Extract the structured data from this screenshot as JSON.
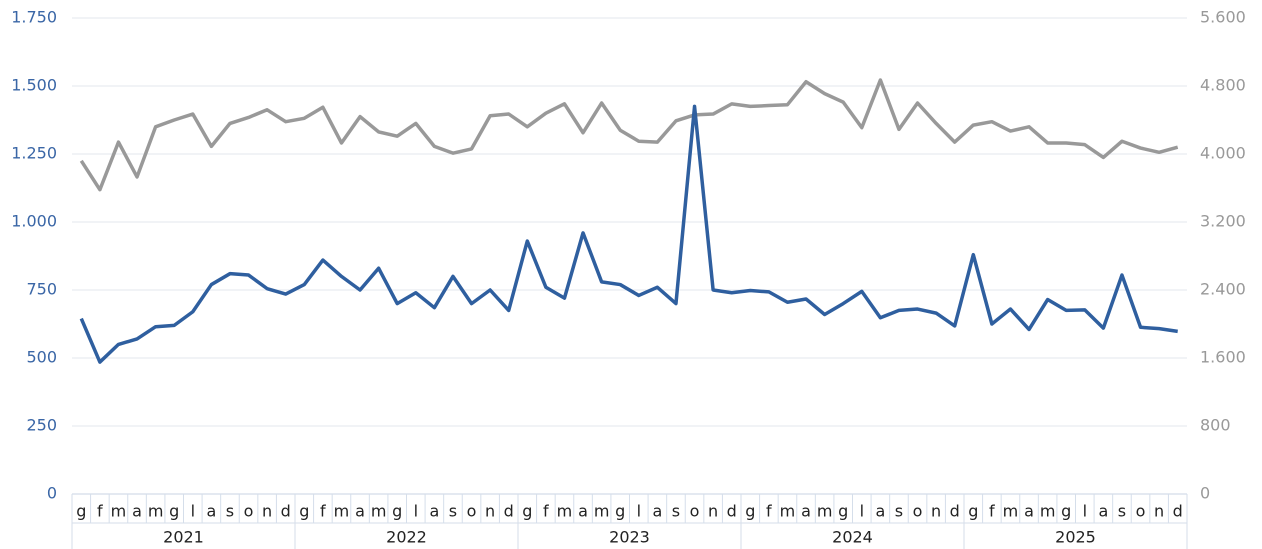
{
  "chart_data": {
    "type": "line",
    "categories": [
      "g",
      "f",
      "m",
      "a",
      "m",
      "g",
      "l",
      "a",
      "s",
      "o",
      "n",
      "d",
      "g",
      "f",
      "m",
      "a",
      "m",
      "g",
      "l",
      "a",
      "s",
      "o",
      "n",
      "d",
      "g",
      "f",
      "m",
      "a",
      "m",
      "g",
      "l",
      "a",
      "s",
      "o",
      "n",
      "d",
      "g",
      "f",
      "m",
      "a",
      "m",
      "g",
      "l",
      "a",
      "s",
      "o",
      "n",
      "d",
      "g",
      "f",
      "m",
      "a",
      "m",
      "g",
      "l",
      "a",
      "s",
      "o",
      "n",
      "d"
    ],
    "years": [
      "2021",
      "2022",
      "2023",
      "2024",
      "2025"
    ],
    "series": [
      {
        "color": "#2f5f9f",
        "axis": "y",
        "values": [
          645,
          485,
          550,
          570,
          615,
          620,
          670,
          770,
          810,
          805,
          755,
          735,
          770,
          860,
          800,
          750,
          830,
          700,
          740,
          685,
          800,
          700,
          750,
          675,
          930,
          760,
          720,
          960,
          780,
          770,
          730,
          760,
          700,
          1425,
          750,
          740,
          748,
          743,
          705,
          717,
          660,
          700,
          745,
          648,
          675,
          680,
          665,
          618,
          880,
          625,
          680,
          605,
          715,
          675,
          677,
          610,
          805,
          613,
          608,
          598
        ]
      },
      {
        "color": "#999999",
        "axis": "y2",
        "values": [
          3920,
          3580,
          4140,
          3730,
          4320,
          4400,
          4470,
          4090,
          4360,
          4430,
          4520,
          4380,
          4420,
          4550,
          4130,
          4440,
          4260,
          4210,
          4360,
          4090,
          4010,
          4060,
          4450,
          4470,
          4320,
          4480,
          4590,
          4250,
          4600,
          4280,
          4150,
          4140,
          4390,
          4460,
          4470,
          4590,
          4560,
          4570,
          4580,
          4850,
          4710,
          4610,
          4310,
          4870,
          4290,
          4600,
          4360,
          4140,
          4340,
          4380,
          4270,
          4320,
          4130,
          4130,
          4110,
          3960,
          4150,
          4070,
          4020,
          4080
        ]
      }
    ],
    "ylim": [
      0,
      1750
    ],
    "yticks": [
      0,
      250,
      500,
      750,
      {
        "value": 1000,
        "label": "1.000"
      },
      {
        "value": 1250,
        "label": "1.250"
      },
      {
        "value": 1500,
        "label": "1.500"
      },
      {
        "value": 1750,
        "label": "1.750"
      }
    ],
    "y2lim": [
      0,
      5600
    ],
    "y2ticks": [
      0,
      800,
      {
        "value": 1600,
        "label": "1.600"
      },
      {
        "value": 2400,
        "label": "2.400"
      },
      {
        "value": 3200,
        "label": "3.200"
      },
      {
        "value": 4000,
        "label": "4.000"
      },
      {
        "value": 4800,
        "label": "4.800"
      },
      {
        "value": 5600,
        "label": "5.600"
      }
    ],
    "grid": true
  }
}
